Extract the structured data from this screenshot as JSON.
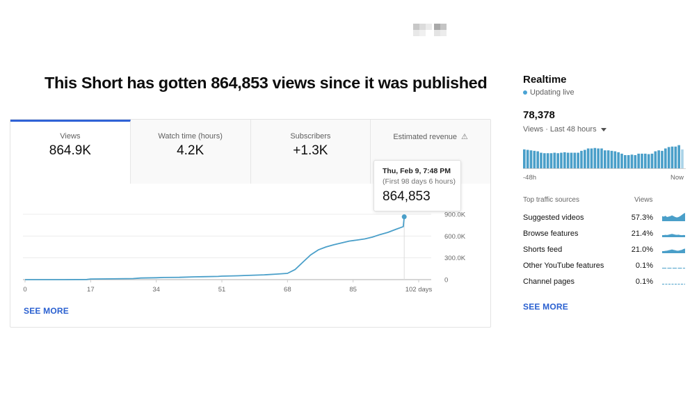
{
  "headline": "This Short has gotten 864,853 views since it was published",
  "metrics": {
    "tabs": [
      {
        "label": "Views",
        "value": "864.9K",
        "active": true
      },
      {
        "label": "Watch time (hours)",
        "value": "4.2K",
        "active": false
      },
      {
        "label": "Subscribers",
        "value": "+1.3K",
        "active": false
      },
      {
        "label": "Estimated revenue",
        "value": "",
        "active": false,
        "icon": "warning-icon",
        "value_redacted": true
      }
    ]
  },
  "tooltip": {
    "date": "Thu, Feb 9, 7:48 PM",
    "subtitle": "(First 98 days 6 hours)",
    "value": "864,853"
  },
  "main_see_more": "SEE MORE",
  "colors": {
    "accent": "#2f62d6",
    "line": "#4a9fc9",
    "bar": "#4a9fc9",
    "bar_light": "#a9d2e8",
    "link": "#2a60d0"
  },
  "chart_data": {
    "type": "line",
    "title": "Views",
    "xlabel": "days",
    "ylabel": "",
    "x_ticks": [
      0,
      17,
      34,
      51,
      68,
      85,
      102
    ],
    "x_tick_labels": [
      "0",
      "17",
      "34",
      "51",
      "68",
      "85",
      "102 days"
    ],
    "y_ticks": [
      0,
      300000,
      600000,
      900000
    ],
    "y_tick_labels": [
      "0",
      "300.0K",
      "600.0K",
      "900.0K"
    ],
    "xlim": [
      0,
      102
    ],
    "ylim": [
      0,
      900000
    ],
    "grid": true,
    "series": [
      {
        "name": "Views",
        "x": [
          0,
          5,
          10,
          16,
          17,
          22,
          28,
          30,
          34,
          36,
          40,
          44,
          46,
          50,
          51,
          55,
          58,
          62,
          65,
          68,
          70,
          72,
          74,
          76,
          78,
          80,
          82,
          84,
          86,
          88,
          90,
          92,
          94,
          96,
          98,
          100,
          98.25
        ],
        "y": [
          0,
          0,
          0,
          2000,
          9000,
          11000,
          14000,
          22000,
          26000,
          30000,
          32000,
          38000,
          40000,
          44000,
          48000,
          53000,
          58000,
          66000,
          76000,
          86000,
          140000,
          240000,
          340000,
          410000,
          450000,
          480000,
          505000,
          530000,
          545000,
          560000,
          585000,
          620000,
          650000,
          690000,
          730000,
          780000,
          864853
        ]
      }
    ],
    "highlight_point": {
      "x": 98.25,
      "y": 864853
    }
  },
  "realtime": {
    "title": "Realtime",
    "status": "Updating live",
    "count": "78,378",
    "period": "Views · Last 48 hours",
    "axis_start": "-48h",
    "axis_end": "Now",
    "bar_values": [
      20,
      19.5,
      19,
      18.5,
      18,
      16.5,
      16,
      16,
      16,
      16.5,
      16,
      16.5,
      17,
      16.5,
      16.5,
      16.5,
      16.5,
      18.5,
      19.5,
      21,
      21,
      21.5,
      21,
      21,
      19,
      19,
      18.5,
      18,
      17,
      15.5,
      14,
      14,
      14.5,
      14,
      15.5,
      15.5,
      15.5,
      15,
      15.5,
      18,
      19,
      18.5,
      21,
      22.5,
      23,
      23,
      24.5,
      20
    ]
  },
  "traffic_sources": {
    "header_label": "Top traffic sources",
    "header_metric": "Views",
    "rows": [
      {
        "name": "Suggested videos",
        "pct": "57.3%",
        "spark": [
          6,
          5.5,
          6.5,
          5,
          5.5,
          6,
          7,
          6,
          5,
          4.5,
          5,
          6,
          7.5,
          9,
          10
        ]
      },
      {
        "name": "Browse features",
        "pct": "21.4%",
        "spark": [
          2.5,
          2.5,
          2.8,
          2.6,
          3,
          3.5,
          4,
          3.5,
          3,
          2.8,
          3,
          2.6,
          2.4,
          2.6,
          2.5
        ]
      },
      {
        "name": "Shorts feed",
        "pct": "21.0%",
        "spark": [
          2.5,
          2.5,
          2.8,
          3,
          3.5,
          4,
          4.5,
          4,
          3.5,
          3,
          3,
          3.5,
          4,
          5,
          5.5
        ]
      },
      {
        "name": "Other YouTube features",
        "pct": "0.1%",
        "spark": [
          0.6,
          0.6,
          0.6,
          0.6,
          0.6,
          0.6,
          0.6,
          0.6,
          0.6,
          0.6,
          0.6,
          0.6,
          0.6,
          0.6,
          0.6
        ]
      },
      {
        "name": "Channel pages",
        "pct": "0.1%",
        "spark": [
          0.5,
          0.5,
          0.5,
          0.5,
          0.5,
          0.5,
          0.5,
          0.5,
          0.5,
          0.5,
          0.5,
          0.5,
          0.5,
          0.5,
          0.5
        ]
      }
    ],
    "see_more": "SEE MORE"
  }
}
